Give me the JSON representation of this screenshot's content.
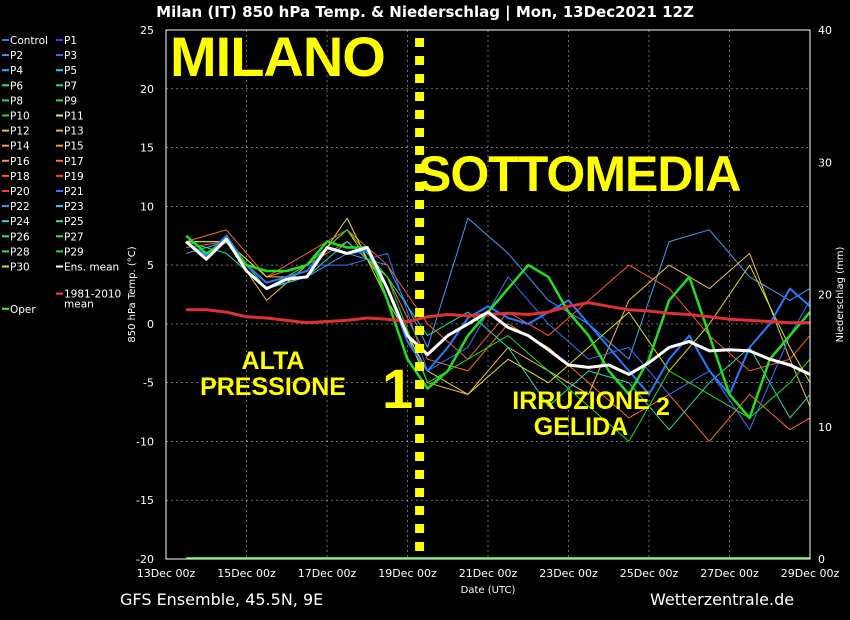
{
  "title": "Milan  (IT)  850 hPa Temp. & Niederschlag | Mon, 13Dec2021 12Z",
  "footer": {
    "left": "GFS Ensemble, 45.5N, 9E",
    "right": "Wetterzentrale.de"
  },
  "overlays": {
    "milano": "MILANO",
    "sottomedia": "SOTTOMEDIA",
    "alta": [
      "ALTA",
      "PRESSIONE"
    ],
    "irruzione": [
      "IRRUZIONE",
      "GELIDA"
    ],
    "marker_one": "1",
    "marker_two": "2"
  },
  "chart_data": {
    "type": "line",
    "title": "Milan  (IT)  850 hPa Temp. & Niederschlag | Mon, 13Dec2021 12Z",
    "xlabel": "Date (UTC)",
    "ylabel": "850 hPa Temp. (°C)",
    "y2label": "Niederschlag (mm)",
    "x_tick_labels": [
      "13Dec 00z",
      "15Dec 00z",
      "17Dec 00z",
      "19Dec 00z",
      "21Dec 00z",
      "23Dec 00z",
      "25Dec 00z",
      "27Dec 00z",
      "29Dec 00z"
    ],
    "x_range_days": [
      0,
      16
    ],
    "x_start": "13Dec 00z",
    "ylim": [
      -20,
      25
    ],
    "y_ticks": [
      -20,
      -15,
      -10,
      -5,
      0,
      5,
      10,
      15,
      20,
      25
    ],
    "y2lim": [
      0,
      40
    ],
    "y2_ticks": [
      0,
      10,
      20,
      30,
      40
    ],
    "marker_line_day": 6.3,
    "legend_placement": "left",
    "legend": [
      {
        "name": "Control",
        "color": "#2a7bff"
      },
      {
        "name": "P1",
        "color": "#3a3aff"
      },
      {
        "name": "P2",
        "color": "#3b9bff"
      },
      {
        "name": "P3",
        "color": "#2f6fff"
      },
      {
        "name": "P4",
        "color": "#22b7ff"
      },
      {
        "name": "P5",
        "color": "#20d0e8"
      },
      {
        "name": "P6",
        "color": "#20e0b0"
      },
      {
        "name": "P7",
        "color": "#20e090"
      },
      {
        "name": "P8",
        "color": "#20e060"
      },
      {
        "name": "P9",
        "color": "#40e030"
      },
      {
        "name": "P10",
        "color": "#33dd00"
      },
      {
        "name": "P11",
        "color": "#e8e840"
      },
      {
        "name": "P12",
        "color": "#f0c040"
      },
      {
        "name": "P13",
        "color": "#f0b030"
      },
      {
        "name": "P14",
        "color": "#f0a030"
      },
      {
        "name": "P15",
        "color": "#ff9a20"
      },
      {
        "name": "P16",
        "color": "#ff8a50"
      },
      {
        "name": "P17",
        "color": "#ff7030"
      },
      {
        "name": "P18",
        "color": "#ff5a30"
      },
      {
        "name": "P19",
        "color": "#ff4a20"
      },
      {
        "name": "P20",
        "color": "#ff3a3a"
      },
      {
        "name": "P21",
        "color": "#3a6fff"
      },
      {
        "name": "P22",
        "color": "#3aa0ff"
      },
      {
        "name": "P23",
        "color": "#30c8ff"
      },
      {
        "name": "P24",
        "color": "#30d8e0"
      },
      {
        "name": "P25",
        "color": "#30e0b8"
      },
      {
        "name": "P26",
        "color": "#30e098"
      },
      {
        "name": "P27",
        "color": "#30e070"
      },
      {
        "name": "P28",
        "color": "#30e050"
      },
      {
        "name": "P29",
        "color": "#20e020"
      },
      {
        "name": "P30",
        "color": "#e0e020"
      },
      {
        "name": "Ens. mean",
        "color": "#ffffff"
      },
      {
        "name": "Oper",
        "color": "#33ff33"
      },
      {
        "name": "1981-2010 mean",
        "color": "#ff4040"
      }
    ],
    "series": [
      {
        "name": "Ens. mean",
        "color": "#ffffff",
        "x": [
          0.5,
          1.0,
          1.5,
          2.0,
          2.5,
          3.0,
          3.5,
          4.0,
          4.5,
          5.0,
          5.5,
          6.0,
          6.5,
          7.0,
          7.5,
          8.0,
          8.5,
          9.0,
          9.5,
          10.0,
          10.5,
          11.0,
          11.5,
          12.0,
          12.5,
          13.0,
          13.5,
          14.0,
          14.5,
          15.0,
          15.5,
          16.0
        ],
        "y": [
          7,
          5.5,
          7.2,
          4.5,
          3,
          3.8,
          4,
          6.5,
          6,
          6.5,
          3,
          -1,
          -2.6,
          -1,
          0,
          1,
          -0.3,
          -1,
          -2.2,
          -3.5,
          -3.7,
          -3.5,
          -4.3,
          -3.3,
          -2,
          -1.5,
          -2.3,
          -2.2,
          -2.3,
          -3,
          -3.5,
          -4.3
        ]
      },
      {
        "name": "1981-2010 mean",
        "color": "#e03030",
        "x": [
          0.5,
          1.0,
          1.5,
          2.0,
          2.5,
          3.0,
          3.5,
          4.0,
          4.5,
          5.0,
          5.5,
          6.0,
          6.5,
          7.0,
          7.5,
          8.0,
          8.5,
          9.0,
          9.5,
          10.0,
          10.5,
          11.0,
          11.5,
          12.0,
          12.5,
          13.0,
          13.5,
          14.0,
          14.5,
          15.0,
          15.5,
          16.0
        ],
        "y": [
          1.2,
          1.2,
          1,
          0.6,
          0.5,
          0.3,
          0.1,
          0.2,
          0.3,
          0.5,
          0.4,
          0.2,
          0.6,
          0.8,
          0.7,
          0.8,
          0.9,
          0.8,
          1,
          1.5,
          1.8,
          1.5,
          1.2,
          1.1,
          0.9,
          0.8,
          0.6,
          0.4,
          0.3,
          0.2,
          0.1,
          0.1
        ]
      },
      {
        "name": "Oper",
        "color": "#22dd22",
        "x": [
          0.5,
          1.0,
          1.5,
          2.0,
          2.5,
          3.0,
          3.5,
          4.0,
          4.5,
          5.0,
          5.5,
          6.0,
          6.5,
          7.0,
          7.5,
          8.0,
          8.5,
          9.0,
          9.5,
          10.0,
          10.5,
          11.0,
          11.5,
          12.0,
          12.5,
          13.0,
          13.5,
          14.0,
          14.5,
          15.0,
          15.5,
          16.0
        ],
        "y": [
          7.5,
          6,
          7,
          5,
          4.5,
          4.5,
          5,
          7,
          6.5,
          6.5,
          2,
          -3,
          -5.5,
          -4,
          -1,
          1,
          3,
          5,
          4,
          1,
          -1,
          -4,
          -6,
          -3,
          2,
          4,
          -1,
          -6,
          -8,
          -3,
          -1,
          1
        ]
      },
      {
        "name": "Control",
        "color": "#2a7bff",
        "x": [
          0.5,
          1.0,
          1.5,
          2.0,
          2.5,
          3.0,
          3.5,
          4.0,
          4.5,
          5.0,
          5.5,
          6.0,
          6.5,
          7.0,
          7.5,
          8.0,
          8.5,
          9.0,
          9.5,
          10.0,
          10.5,
          11.0,
          11.5,
          12.0,
          12.5,
          13.0,
          13.5,
          14.0,
          14.5,
          15.0,
          15.5,
          16.0
        ],
        "y": [
          7,
          5.8,
          7.5,
          5,
          3.5,
          4,
          4.5,
          6.5,
          6,
          6.2,
          3,
          -1.5,
          -4,
          -2,
          0.5,
          1.5,
          0.5,
          0,
          1,
          2,
          0,
          -2,
          -4,
          -6,
          -3,
          -1,
          -4,
          -6,
          -2,
          0,
          3,
          1.5
        ]
      },
      {
        "name": "P6",
        "color": "#ff7020",
        "x": [
          0.5,
          1.5,
          2.5,
          3.5,
          4.5,
          5.5,
          6.5,
          7.5,
          8.5,
          9.5,
          10.5,
          11.5,
          12.5,
          13.5,
          14.5,
          15.5,
          16.0
        ],
        "y": [
          7,
          8,
          4,
          5,
          7,
          4,
          -3,
          -4,
          0,
          -2,
          -5,
          -8,
          -6,
          -10,
          -6,
          -9,
          -8
        ]
      },
      {
        "name": "P8",
        "color": "#3aa0ff",
        "x": [
          0.5,
          1.5,
          2.5,
          3.5,
          4.5,
          5.5,
          6.5,
          7.5,
          8.5,
          9.5,
          10.5,
          11.5,
          12.5,
          13.5,
          14.5,
          15.5,
          16.0
        ],
        "y": [
          6,
          7,
          3,
          4,
          6,
          5,
          -2,
          9,
          6,
          2,
          0,
          -3,
          7,
          8,
          4,
          2,
          3
        ]
      },
      {
        "name": "P12",
        "color": "#f0c040",
        "x": [
          0.5,
          1.5,
          2.5,
          3.5,
          4.5,
          5.5,
          6.5,
          7.5,
          8.5,
          9.5,
          10.5,
          11.5,
          12.5,
          13.5,
          14.5,
          15.5,
          16.0
        ],
        "y": [
          7,
          7,
          2,
          5,
          8,
          3,
          -5,
          -6,
          -2,
          -4,
          -6,
          2,
          5,
          3,
          6,
          -3,
          -7
        ]
      },
      {
        "name": "P14",
        "color": "#20e0b0",
        "x": [
          0.5,
          1.5,
          2.5,
          3.5,
          4.5,
          5.5,
          6.5,
          7.5,
          8.5,
          9.5,
          10.5,
          11.5,
          12.5,
          13.5,
          14.5,
          15.5,
          16.0
        ],
        "y": [
          7,
          6,
          3,
          4,
          7,
          4,
          -1,
          1,
          -2,
          -7,
          -4,
          -5,
          -9,
          -5,
          -2,
          -8,
          -6
        ]
      },
      {
        "name": "P17",
        "color": "#ff5a30",
        "x": [
          0.5,
          1.5,
          2.5,
          3.5,
          4.5,
          5.5,
          6.5,
          7.5,
          8.5,
          9.5,
          10.5,
          11.5,
          12.5,
          13.5,
          14.5,
          15.5,
          16.0
        ],
        "y": [
          6.5,
          7,
          4,
          6,
          8,
          5,
          0,
          -3,
          1,
          -1,
          2,
          5,
          3,
          -1,
          -4,
          -3,
          -1
        ]
      },
      {
        "name": "P21",
        "color": "#3a6fff",
        "x": [
          0.5,
          1.5,
          2.5,
          3.5,
          4.5,
          5.5,
          6.5,
          7.5,
          8.5,
          9.5,
          10.5,
          11.5,
          12.5,
          13.5,
          14.5,
          15.5,
          16.0
        ],
        "y": [
          7,
          7,
          3,
          5,
          5,
          6,
          -4,
          -2,
          4,
          0,
          -3,
          -2,
          -6,
          -4,
          -9,
          -1,
          2
        ]
      },
      {
        "name": "P29",
        "color": "#20e020",
        "x": [
          0.5,
          1.5,
          2.5,
          3.5,
          4.5,
          5.5,
          6.5,
          7.5,
          8.5,
          9.5,
          10.5,
          11.5,
          12.5,
          13.5,
          14.5,
          15.5,
          16.0
        ],
        "y": [
          7,
          7,
          3,
          5,
          8,
          4,
          -5,
          -3,
          -1,
          -4,
          -7,
          -10,
          -4,
          -6,
          -8,
          -5,
          -3
        ]
      },
      {
        "name": "P30",
        "color": "#e0e020",
        "x": [
          0.5,
          1.5,
          2.5,
          3.5,
          4.5,
          5.5,
          6.5,
          7.5,
          8.5,
          9.5,
          10.5,
          11.5,
          12.5,
          13.5,
          14.5,
          15.5,
          16.0
        ],
        "y": [
          7,
          7,
          4,
          4,
          9,
          2,
          -4,
          -6,
          -3,
          -5,
          -2,
          1,
          -4,
          0,
          5,
          -2,
          -5
        ]
      }
    ]
  }
}
